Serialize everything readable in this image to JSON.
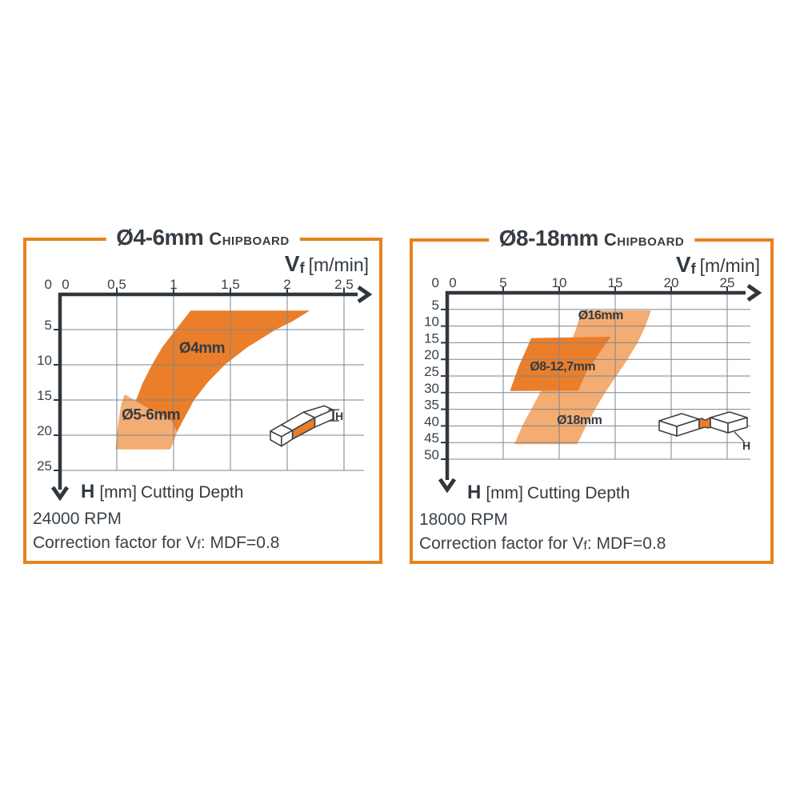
{
  "colors": {
    "border": "#E8821E",
    "band_dark": "#EA7E2B",
    "band_light": "#F3AC71",
    "axis": "#30373D",
    "grid": "#7E858D",
    "tick_text": "#3A424A",
    "band_label_text": "#323B45"
  },
  "panels": [
    {
      "title": {
        "range": "Ø4-6mm",
        "material": "Chipboard"
      },
      "vf_label": {
        "sym": "V",
        "sub": "f",
        "unit": "[m/min]"
      },
      "h_label": {
        "sym": "H",
        "unit": "[mm]",
        "text": "Cutting Depth"
      },
      "rpm": "24000 RPM",
      "correction": {
        "pre": "Correction factor for V",
        "sub": "f",
        "post": ": MDF=0.8"
      },
      "icon_h": "H",
      "chart_data": {
        "type": "area",
        "title": "Ø4-6mm Chipboard",
        "xlabel": "Vf [m/min]",
        "ylabel": "H [mm] Cutting Depth",
        "x_axis": {
          "range": [
            0,
            2.65
          ],
          "ticks": [
            {
              "label": "0",
              "v": 0
            },
            {
              "label": "0.5",
              "v": 0.5
            },
            {
              "label": "1",
              "v": 1
            },
            {
              "label": "1.5",
              "v": 1.5
            },
            {
              "label": "2",
              "v": 2
            },
            {
              "label": "2.5",
              "v": 2.5
            }
          ]
        },
        "y_axis": {
          "range": [
            0,
            25
          ],
          "ticks": [
            {
              "label": "0",
              "v": 0
            },
            {
              "label": "5",
              "v": 5
            },
            {
              "label": "10",
              "v": 10
            },
            {
              "label": "15",
              "v": 15
            },
            {
              "label": "20",
              "v": 20
            },
            {
              "label": "25",
              "v": 25
            }
          ]
        },
        "grid": true,
        "legend": "labels inside bands",
        "bands": [
          {
            "shade": "dark",
            "labels": [
              {
                "text": "Ø4mm",
                "at": [
                  1.25,
                  8.3
                ]
              }
            ],
            "points": [
              [
                1.15,
                2.3
              ],
              [
                2.2,
                2.3
              ],
              [
                2.05,
                3.8
              ],
              [
                1.9,
                5
              ],
              [
                1.65,
                7.5
              ],
              [
                1.45,
                10
              ],
              [
                1.3,
                12.5
              ],
              [
                1.18,
                15
              ],
              [
                1.08,
                18
              ],
              [
                1.0,
                20.5
              ],
              [
                0.97,
                22
              ],
              [
                0.55,
                22
              ],
              [
                0.58,
                20
              ],
              [
                0.62,
                17.5
              ],
              [
                0.67,
                15
              ],
              [
                0.73,
                12.5
              ],
              [
                0.81,
                10
              ],
              [
                0.9,
                7.5
              ],
              [
                1.02,
                5
              ]
            ]
          },
          {
            "shade": "light",
            "labels": [
              {
                "text": "Ø5-6mm",
                "at": [
                  0.8,
                  17.8
                ]
              }
            ],
            "points": [
              [
                0.57,
                14.2
              ],
              [
                0.78,
                16.2
              ],
              [
                0.98,
                17.9
              ],
              [
                1.03,
                19.5
              ],
              [
                1.0,
                21
              ],
              [
                0.97,
                22
              ],
              [
                0.49,
                22
              ],
              [
                0.5,
                20
              ],
              [
                0.52,
                17.5
              ],
              [
                0.54,
                15.5
              ]
            ]
          }
        ]
      }
    },
    {
      "title": {
        "range": "Ø8-18mm",
        "material": "Chipboard"
      },
      "vf_label": {
        "sym": "V",
        "sub": "f",
        "unit": "[m/min]"
      },
      "h_label": {
        "sym": "H",
        "unit": "[mm]",
        "text": "Cutting Depth"
      },
      "rpm": "18000 RPM",
      "correction": {
        "pre": "Correction factor for V",
        "sub": "f",
        "post": ": MDF=0.8"
      },
      "icon_h": "H",
      "chart_data": {
        "type": "area",
        "title": "Ø8-18mm Chipboard",
        "xlabel": "Vf [m/min]",
        "ylabel": "H [mm] Cutting Depth",
        "x_axis": {
          "range": [
            0,
            26.5
          ],
          "ticks": [
            {
              "label": "0",
              "v": 0
            },
            {
              "label": "5",
              "v": 5
            },
            {
              "label": "10",
              "v": 10
            },
            {
              "label": "15",
              "v": 15
            },
            {
              "label": "20",
              "v": 20
            },
            {
              "label": "25",
              "v": 25
            }
          ]
        },
        "y_axis": {
          "range": [
            0,
            50
          ],
          "ticks": [
            {
              "label": "0",
              "v": 0
            },
            {
              "label": "5",
              "v": 5
            },
            {
              "label": "10",
              "v": 10
            },
            {
              "label": "15",
              "v": 15
            },
            {
              "label": "20",
              "v": 20
            },
            {
              "label": "25",
              "v": 25
            },
            {
              "label": "30",
              "v": 30
            },
            {
              "label": "35",
              "v": 35
            },
            {
              "label": "40",
              "v": 40
            },
            {
              "label": "45",
              "v": 45
            },
            {
              "label": "50",
              "v": 50
            }
          ]
        },
        "grid": true,
        "legend": "labels inside bands",
        "bands": [
          {
            "shade": "light",
            "labels": [
              {
                "text": "Ø16mm",
                "at": [
                  13.7,
                  7.9
                ]
              },
              {
                "text": "Ø18mm",
                "at": [
                  11.8,
                  39.4
                ]
              }
            ],
            "points": [
              [
                12.0,
                5.3
              ],
              [
                18.2,
                5.3
              ],
              [
                17.7,
                10
              ],
              [
                17.0,
                15
              ],
              [
                16.1,
                20
              ],
              [
                15.1,
                25
              ],
              [
                14.1,
                30
              ],
              [
                13.2,
                35
              ],
              [
                12.4,
                40
              ],
              [
                11.6,
                45.5
              ],
              [
                6.0,
                45.5
              ],
              [
                6.7,
                40
              ],
              [
                7.5,
                35
              ],
              [
                8.3,
                30
              ],
              [
                9.2,
                25
              ],
              [
                10.1,
                20
              ],
              [
                11.0,
                15
              ],
              [
                11.5,
                11
              ]
            ]
          },
          {
            "shade": "dark",
            "labels": [
              {
                "text": "Ø8-12,7mm",
                "at": [
                  10.3,
                  23.3
                ]
              }
            ],
            "points": [
              [
                7.5,
                13.6
              ],
              [
                14.6,
                13.2
              ],
              [
                13.4,
                19
              ],
              [
                12.4,
                24
              ],
              [
                11.7,
                29.4
              ],
              [
                5.6,
                29.5
              ],
              [
                6.4,
                22
              ],
              [
                7.0,
                17.5
              ]
            ]
          }
        ]
      }
    }
  ]
}
